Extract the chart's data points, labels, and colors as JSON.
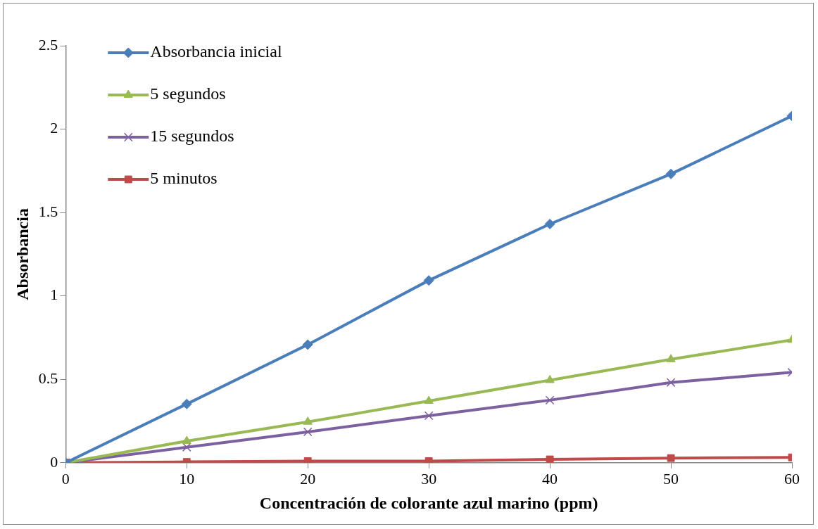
{
  "chart_data": {
    "type": "line",
    "xlabel": "Concentración de colorante azul marino (ppm)",
    "ylabel": "Absorbancia",
    "x": [
      0,
      10,
      20,
      30,
      40,
      50,
      60
    ],
    "series": [
      {
        "name": "Absorbancia inicial",
        "color": "#4a7ebb",
        "marker": "diamond",
        "values": [
          0,
          0.352,
          0.708,
          1.093,
          1.431,
          1.731,
          2.079
        ]
      },
      {
        "name": "5 segundos",
        "color": "#98b954",
        "marker": "triangle",
        "values": [
          0,
          0.13,
          0.245,
          0.37,
          0.495,
          0.62,
          0.736
        ]
      },
      {
        "name": "15 segundos",
        "color": "#7d60a0",
        "marker": "cross",
        "values": [
          0,
          0.093,
          0.185,
          0.282,
          0.375,
          0.481,
          0.542
        ]
      },
      {
        "name": "5 minutos",
        "color": "#be4b48",
        "marker": "square",
        "values": [
          0,
          0.005,
          0.01,
          0.01,
          0.02,
          0.028,
          0.032
        ]
      }
    ],
    "xlim": [
      0,
      60
    ],
    "xticks": [
      0,
      10,
      20,
      30,
      40,
      50,
      60
    ],
    "ylim": [
      0,
      2.5
    ],
    "yticks": [
      0,
      0.5,
      1,
      1.5,
      2,
      2.5
    ],
    "grid": false,
    "legend": "top left"
  }
}
